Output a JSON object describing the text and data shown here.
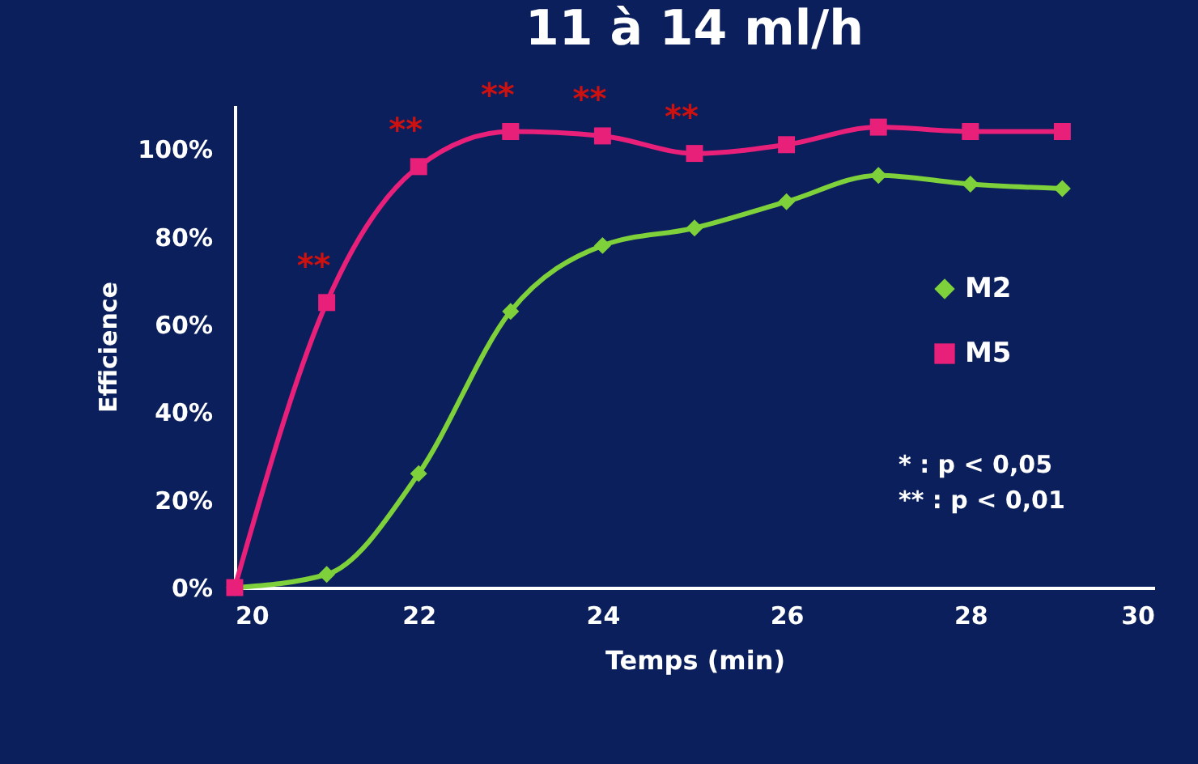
{
  "chart_data": {
    "type": "line",
    "title": "11 à 14 ml/h",
    "xlabel": "Temps (min)",
    "ylabel": "Efficience",
    "x": [
      20,
      21,
      22,
      23,
      24,
      25,
      26,
      27,
      28,
      29
    ],
    "series": [
      {
        "name": "M2",
        "color": "#7ed13a",
        "marker": "diamond",
        "values": [
          0,
          3,
          26,
          63,
          78,
          82,
          88,
          94,
          92,
          91
        ]
      },
      {
        "name": "M5",
        "color": "#e8207a",
        "marker": "square",
        "values": [
          0,
          65,
          96,
          104,
          103,
          99,
          101,
          105,
          104,
          104
        ]
      }
    ],
    "xlim": [
      20,
      30
    ],
    "xticks": [
      20,
      22,
      24,
      26,
      28,
      30
    ],
    "ylim": [
      0,
      110
    ],
    "yticks": [
      {
        "value": 0,
        "label": "0%"
      },
      {
        "value": 20,
        "label": "20%"
      },
      {
        "value": 40,
        "label": "40%"
      },
      {
        "value": 60,
        "label": "60%"
      },
      {
        "value": 80,
        "label": "80%"
      },
      {
        "value": 100,
        "label": "100%"
      }
    ],
    "annotations": [
      {
        "text": "**",
        "x": 21,
        "y": 65
      },
      {
        "text": "**",
        "x": 22,
        "y": 96
      },
      {
        "text": "**",
        "x": 23,
        "y": 104
      },
      {
        "text": "**",
        "x": 24,
        "y": 103
      },
      {
        "text": "**",
        "x": 25,
        "y": 99
      },
      "*    : p < 0,05",
      "**  : p < 0,01"
    ],
    "grid": false,
    "legend": "right",
    "line_style": "solid"
  }
}
